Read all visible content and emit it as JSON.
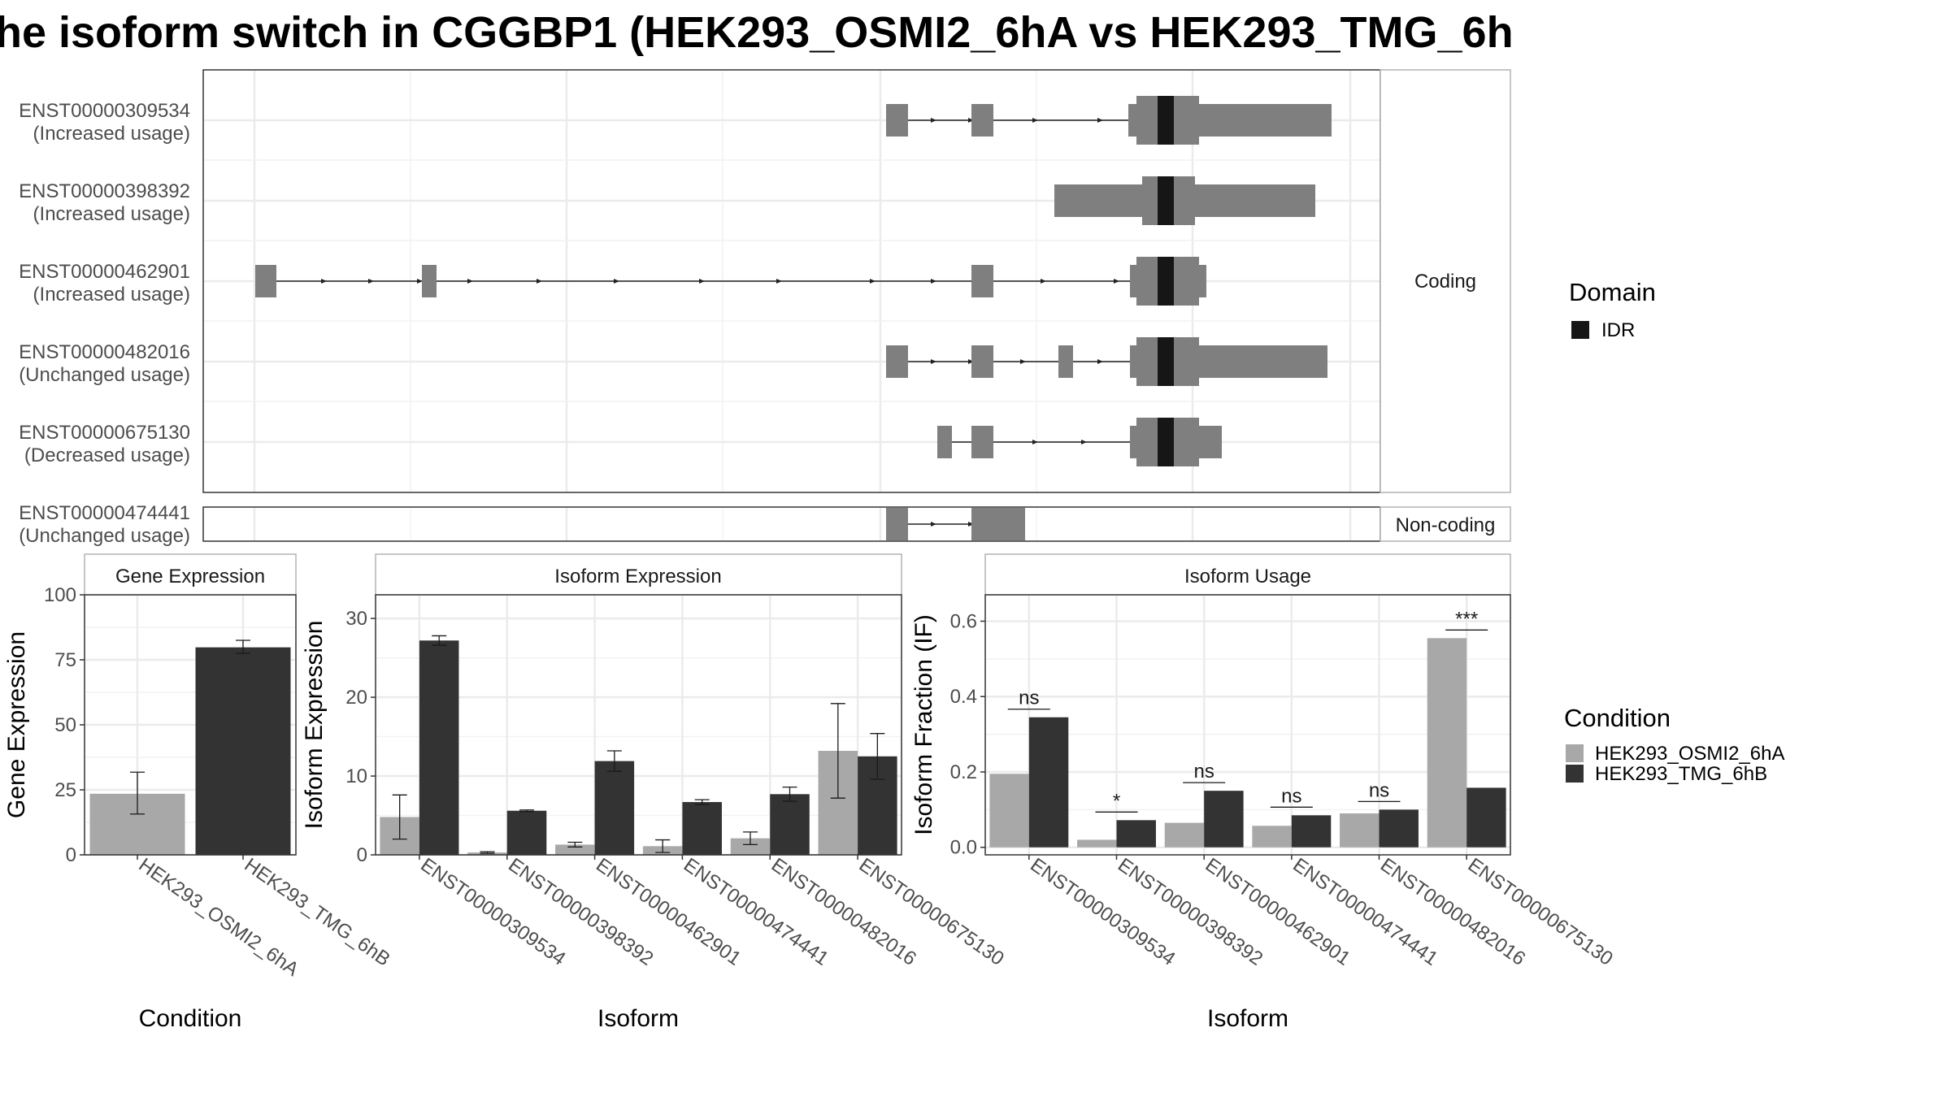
{
  "title": "he isoform switch in CGGBP1 (HEK293_OSMI2_6hA vs HEK293_TMG_6h",
  "colors": {
    "cond_a": "#a8a8a8",
    "cond_b": "#333333",
    "exon": "#7f7f7f",
    "idr": "#161616",
    "grid": "#ebebeb",
    "panel_border": "#333333",
    "strip_border": "#b3b3b3",
    "text_dark": "#1a1a1a",
    "text_axis": "#4d4d4d"
  },
  "structure": {
    "coding_label": "Coding",
    "noncoding_label": "Non-coding",
    "transcripts": [
      {
        "id": "ENST00000309534",
        "usage": "(Increased usage)"
      },
      {
        "id": "ENST00000398392",
        "usage": "(Increased usage)"
      },
      {
        "id": "ENST00000462901",
        "usage": "(Increased usage)"
      },
      {
        "id": "ENST00000482016",
        "usage": "(Unchanged usage)"
      },
      {
        "id": "ENST00000675130",
        "usage": "(Decreased usage)"
      }
    ],
    "noncoding": {
      "id": "ENST00000474441",
      "usage": "(Unchanged usage)"
    },
    "legend": {
      "title": "Domain",
      "items": [
        "IDR"
      ]
    }
  },
  "chart_data": [
    {
      "type": "bar",
      "title": "Gene Expression",
      "xlabel": "Condition",
      "ylabel": "Gene Expression",
      "ylim": [
        0,
        100
      ],
      "yticks": [
        0,
        25,
        50,
        75,
        100
      ],
      "categories": [
        "HEK293_OSMI2_6hA",
        "HEK293_TMG_6hB"
      ],
      "values": [
        23.5,
        79.8
      ],
      "error_low": [
        15.7,
        77.5
      ],
      "error_high": [
        31.8,
        82.5
      ]
    },
    {
      "type": "bar",
      "title": "Isoform Expression",
      "xlabel": "Isoform",
      "ylabel": "Isoform Expression",
      "ylim": [
        0,
        33
      ],
      "yticks": [
        0,
        10,
        20,
        30
      ],
      "categories": [
        "ENST00000309534",
        "ENST00000398392",
        "ENST00000462901",
        "ENST00000474441",
        "ENST00000482016",
        "ENST00000675130"
      ],
      "series": [
        {
          "name": "HEK293_OSMI2_6hA",
          "values": [
            4.8,
            0.3,
            1.3,
            1.1,
            2.1,
            13.2
          ],
          "error_low": [
            2.0,
            0.2,
            1.0,
            0.3,
            1.3,
            7.2
          ],
          "error_high": [
            7.6,
            0.4,
            1.6,
            1.9,
            2.9,
            19.2
          ]
        },
        {
          "name": "HEK293_TMG_6hB",
          "values": [
            27.2,
            5.6,
            11.9,
            6.7,
            7.7,
            12.5
          ],
          "error_low": [
            26.6,
            5.5,
            10.6,
            6.4,
            6.8,
            9.6
          ],
          "error_high": [
            27.8,
            5.7,
            13.2,
            7.0,
            8.6,
            15.4
          ]
        }
      ]
    },
    {
      "type": "bar",
      "title": "Isoform Usage",
      "xlabel": "Isoform",
      "ylabel": "Isoform Fraction (IF)",
      "ylim": [
        -0.02,
        0.67
      ],
      "yticks": [
        0.0,
        0.2,
        0.4,
        0.6
      ],
      "ytick_labels": [
        "0.0",
        "0.2",
        "0.4",
        "0.6"
      ],
      "categories": [
        "ENST00000309534",
        "ENST00000398392",
        "ENST00000462901",
        "ENST00000474441",
        "ENST00000482016",
        "ENST00000675130"
      ],
      "series": [
        {
          "name": "HEK293_OSMI2_6hA",
          "values": [
            0.195,
            0.02,
            0.065,
            0.057,
            0.09,
            0.555
          ]
        },
        {
          "name": "HEK293_TMG_6hB",
          "values": [
            0.345,
            0.072,
            0.15,
            0.085,
            0.1,
            0.158
          ]
        }
      ],
      "significance": [
        "ns",
        "*",
        "ns",
        "ns",
        "ns",
        "***"
      ]
    }
  ],
  "condition_legend": {
    "title": "Condition",
    "items": [
      "HEK293_OSMI2_6hA",
      "HEK293_TMG_6hB"
    ]
  }
}
